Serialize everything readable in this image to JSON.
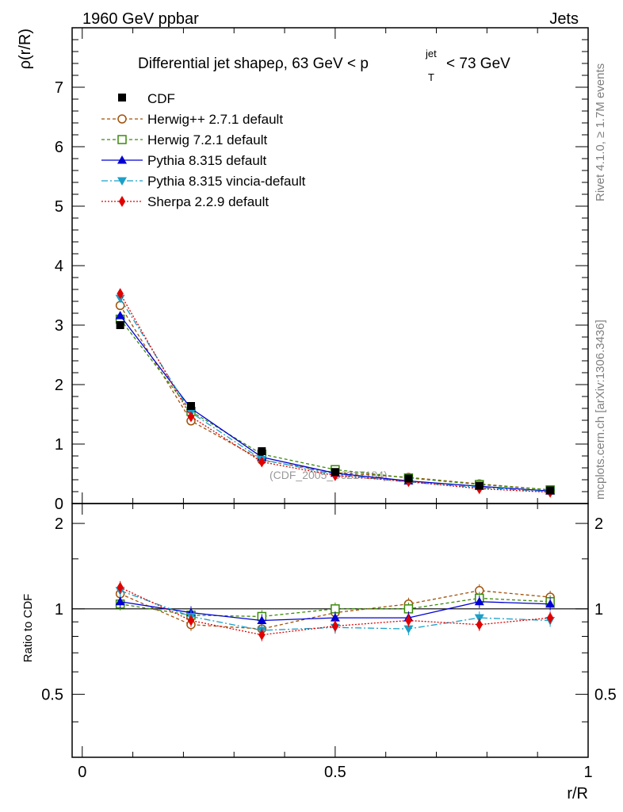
{
  "header": {
    "left": "1960 GeV ppbar",
    "right": "Jets"
  },
  "side_labels": {
    "rivet": "Rivet 4.1.0, ≥ 1.7M events",
    "mcplots": "mcplots.cern.ch [arXiv:1306.3436]"
  },
  "chart_data": {
    "type": "line",
    "title": "Differential jet shapeρ, 63 GeV < p",
    "title_sup": "jet",
    "title_sub": "T",
    "title_end": "< 73 GeV",
    "watermark": "(CDF_2005_S6217184)",
    "xlabel": "r/R",
    "ylabel": "ρ(r/R)",
    "ratio_ylabel": "Ratio to CDF",
    "xlim": [
      -0.02,
      1.0
    ],
    "ylim": [
      0,
      8
    ],
    "ratio_ylim": [
      0.3,
      2.35
    ],
    "x_ticks": [
      0,
      0.5,
      1
    ],
    "x_tick_labels": [
      "0",
      "0.5",
      "1"
    ],
    "y_ticks": [
      0,
      1,
      2,
      3,
      4,
      5,
      6,
      7
    ],
    "y_tick_labels": [
      "0",
      "1",
      "2",
      "3",
      "4",
      "5",
      "6",
      "7"
    ],
    "ratio_ticks": [
      0.5,
      1,
      2
    ],
    "ratio_tick_labels": [
      "0.5",
      "1",
      "2"
    ],
    "x": [
      0.075,
      0.215,
      0.355,
      0.5,
      0.645,
      0.785,
      0.925
    ],
    "reference": {
      "name": "CDF",
      "values": [
        3.0,
        1.64,
        0.88,
        0.53,
        0.42,
        0.3,
        0.22
      ],
      "color": "#000000"
    },
    "series": [
      {
        "name": "Herwig++ 2.7.1 default",
        "values": [
          3.33,
          1.39,
          0.73,
          0.52,
          0.44,
          0.33,
          0.23
        ],
        "ratio": [
          1.13,
          0.88,
          0.85,
          0.97,
          1.04,
          1.16,
          1.1
        ],
        "color": "#a0520a",
        "dash": "4,3",
        "marker": "circle-open"
      },
      {
        "name": "Herwig 7.2.1 default",
        "values": [
          3.1,
          1.55,
          0.83,
          0.57,
          0.43,
          0.32,
          0.23
        ],
        "ratio": [
          1.04,
          0.95,
          0.94,
          1.0,
          1.0,
          1.09,
          1.06
        ],
        "color": "#3a8a0a",
        "dash": "4,3",
        "marker": "square-open"
      },
      {
        "name": "Pythia 8.315 default",
        "values": [
          3.16,
          1.6,
          0.78,
          0.51,
          0.38,
          0.29,
          0.21
        ],
        "ratio": [
          1.06,
          0.97,
          0.91,
          0.93,
          0.93,
          1.06,
          1.04
        ],
        "color": "#0000d4",
        "dash": "",
        "marker": "triangle-up"
      },
      {
        "name": "Pythia 8.315 vincia-default",
        "values": [
          3.45,
          1.53,
          0.74,
          0.49,
          0.36,
          0.27,
          0.2
        ],
        "ratio": [
          1.16,
          0.94,
          0.84,
          0.86,
          0.85,
          0.93,
          0.91
        ],
        "color": "#1aa0c8",
        "dash": "8,3,2,3",
        "marker": "triangle-down"
      },
      {
        "name": "Sherpa 2.2.9 default",
        "values": [
          3.53,
          1.46,
          0.7,
          0.47,
          0.37,
          0.25,
          0.19
        ],
        "ratio": [
          1.19,
          0.91,
          0.81,
          0.87,
          0.91,
          0.88,
          0.93
        ],
        "color": "#e00000",
        "dash": "2,2",
        "marker": "diamond"
      }
    ]
  }
}
